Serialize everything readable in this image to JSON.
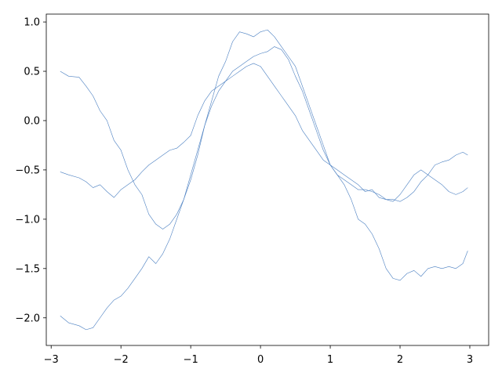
{
  "chart_data": {
    "type": "line",
    "title": "",
    "xlabel": "",
    "ylabel": "",
    "xlim": [
      -3.07,
      3.27
    ],
    "ylim": [
      -2.28,
      1.08
    ],
    "xticks": [
      -3,
      -2,
      -1,
      0,
      1,
      2,
      3
    ],
    "xtick_labels": [
      "−3",
      "−2",
      "−1",
      "0",
      "1",
      "2",
      "3"
    ],
    "yticks": [
      -2.0,
      -1.5,
      -1.0,
      -0.5,
      0.0,
      0.5,
      1.0
    ],
    "ytick_labels": [
      "−2.0",
      "−1.5",
      "−1.0",
      "−0.5",
      "0.0",
      "0.5",
      "1.0"
    ],
    "grid": false,
    "legend": "none",
    "line_color": "#4a7fc1",
    "series": [
      {
        "x": [
          -2.87,
          -2.75,
          -2.6,
          -2.5,
          -2.4,
          -2.3,
          -2.2,
          -2.1,
          -2.0,
          -1.9,
          -1.8,
          -1.7,
          -1.6,
          -1.5,
          -1.4,
          -1.3,
          -1.2,
          -1.1,
          -1.0,
          -0.9,
          -0.8,
          -0.7,
          -0.6,
          -0.5,
          -0.4,
          -0.3,
          -0.2,
          -0.1,
          0.0,
          0.1,
          0.2,
          0.3,
          0.4,
          0.5,
          0.6,
          0.7,
          0.8,
          0.9,
          1.0,
          1.1,
          1.2,
          1.3,
          1.4,
          1.5,
          1.6,
          1.7,
          1.8,
          1.9,
          2.0,
          2.1,
          2.2,
          2.3,
          2.4,
          2.5,
          2.6,
          2.7,
          2.8,
          2.9,
          2.97
        ],
        "y": [
          0.5,
          0.45,
          0.44,
          0.35,
          0.25,
          0.1,
          0.0,
          -0.2,
          -0.3,
          -0.5,
          -0.65,
          -0.75,
          -0.95,
          -1.05,
          -1.1,
          -1.05,
          -0.95,
          -0.8,
          -0.6,
          -0.35,
          -0.05,
          0.2,
          0.45,
          0.6,
          0.8,
          0.9,
          0.88,
          0.85,
          0.9,
          0.92,
          0.85,
          0.75,
          0.65,
          0.55,
          0.35,
          0.15,
          -0.05,
          -0.25,
          -0.45,
          -0.55,
          -0.65,
          -0.8,
          -1.0,
          -1.05,
          -1.15,
          -1.3,
          -1.5,
          -1.6,
          -1.62,
          -1.55,
          -1.52,
          -1.58,
          -1.5,
          -1.48,
          -1.5,
          -1.48,
          -1.5,
          -1.45,
          -1.32
        ]
      },
      {
        "x": [
          -2.87,
          -2.75,
          -2.6,
          -2.5,
          -2.4,
          -2.3,
          -2.2,
          -2.1,
          -2.0,
          -1.9,
          -1.8,
          -1.7,
          -1.6,
          -1.5,
          -1.4,
          -1.3,
          -1.2,
          -1.1,
          -1.0,
          -0.9,
          -0.8,
          -0.7,
          -0.6,
          -0.5,
          -0.4,
          -0.3,
          -0.2,
          -0.1,
          0.0,
          0.1,
          0.2,
          0.3,
          0.4,
          0.5,
          0.6,
          0.7,
          0.8,
          0.9,
          1.0,
          1.1,
          1.2,
          1.3,
          1.4,
          1.5,
          1.6,
          1.7,
          1.8,
          1.9,
          2.0,
          2.1,
          2.2,
          2.3,
          2.4,
          2.5,
          2.6,
          2.7,
          2.8,
          2.9,
          2.97
        ],
        "y": [
          -0.52,
          -0.55,
          -0.58,
          -0.62,
          -0.68,
          -0.65,
          -0.72,
          -0.78,
          -0.7,
          -0.65,
          -0.6,
          -0.52,
          -0.45,
          -0.4,
          -0.35,
          -0.3,
          -0.28,
          -0.22,
          -0.15,
          0.05,
          0.2,
          0.3,
          0.35,
          0.4,
          0.45,
          0.5,
          0.55,
          0.58,
          0.55,
          0.45,
          0.35,
          0.25,
          0.15,
          0.05,
          -0.1,
          -0.2,
          -0.3,
          -0.4,
          -0.45,
          -0.55,
          -0.6,
          -0.65,
          -0.7,
          -0.7,
          -0.72,
          -0.75,
          -0.8,
          -0.8,
          -0.82,
          -0.78,
          -0.72,
          -0.62,
          -0.55,
          -0.45,
          -0.42,
          -0.4,
          -0.35,
          -0.32,
          -0.35
        ]
      },
      {
        "x": [
          -2.87,
          -2.75,
          -2.6,
          -2.5,
          -2.4,
          -2.3,
          -2.2,
          -2.1,
          -2.0,
          -1.9,
          -1.8,
          -1.7,
          -1.6,
          -1.5,
          -1.4,
          -1.3,
          -1.2,
          -1.1,
          -1.0,
          -0.9,
          -0.8,
          -0.7,
          -0.6,
          -0.5,
          -0.4,
          -0.3,
          -0.2,
          -0.1,
          0.0,
          0.1,
          0.2,
          0.3,
          0.4,
          0.5,
          0.6,
          0.7,
          0.8,
          0.9,
          1.0,
          1.1,
          1.2,
          1.3,
          1.4,
          1.5,
          1.6,
          1.7,
          1.8,
          1.9,
          2.0,
          2.1,
          2.2,
          2.3,
          2.4,
          2.5,
          2.6,
          2.7,
          2.8,
          2.9,
          2.97
        ],
        "y": [
          -1.98,
          -2.05,
          -2.08,
          -2.12,
          -2.1,
          -2.0,
          -1.9,
          -1.82,
          -1.78,
          -1.7,
          -1.6,
          -1.5,
          -1.38,
          -1.45,
          -1.35,
          -1.2,
          -1.0,
          -0.8,
          -0.55,
          -0.3,
          -0.05,
          0.15,
          0.3,
          0.4,
          0.5,
          0.55,
          0.6,
          0.65,
          0.68,
          0.7,
          0.75,
          0.72,
          0.62,
          0.45,
          0.3,
          0.1,
          -0.1,
          -0.3,
          -0.45,
          -0.5,
          -0.55,
          -0.6,
          -0.65,
          -0.72,
          -0.7,
          -0.78,
          -0.8,
          -0.82,
          -0.75,
          -0.65,
          -0.55,
          -0.5,
          -0.55,
          -0.6,
          -0.65,
          -0.72,
          -0.75,
          -0.72,
          -0.68
        ]
      }
    ]
  }
}
